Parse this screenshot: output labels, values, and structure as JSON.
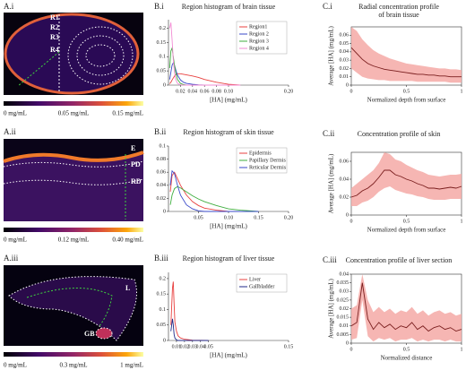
{
  "images": [
    {
      "label": "A.i",
      "annotations": [
        "R1",
        "R2",
        "R3",
        "R4"
      ],
      "colorbar_labels": [
        "0 mg/mL",
        "0.05 mg/mL",
        "0.15 mg/mL"
      ]
    },
    {
      "label": "A.ii",
      "annotations": [
        "E",
        "PD",
        "RD"
      ],
      "colorbar_labels": [
        "0 mg/mL",
        "0.12 mg/mL",
        "0.40 mg/mL"
      ]
    },
    {
      "label": "A.iii",
      "annotations": [
        "L",
        "GB"
      ],
      "colorbar_labels": [
        "0 mg/mL",
        "0.3 mg/mL",
        "1 mg/mL"
      ]
    }
  ],
  "chart_data": [
    {
      "label": "B.i",
      "type": "line",
      "title": [
        "Region histogram of brain tissue"
      ],
      "xlabel": "[HA] (mg/mL)",
      "x": [
        0.002,
        0.004,
        0.006,
        0.008,
        0.01,
        0.012,
        0.015,
        0.02,
        0.025,
        0.03,
        0.04,
        0.05,
        0.06,
        0.08,
        0.1,
        0.12
      ],
      "series": [
        {
          "name": "Region1",
          "color": "#e8403f",
          "values": [
            0.005,
            0.01,
            0.018,
            0.025,
            0.032,
            0.037,
            0.04,
            0.04,
            0.038,
            0.036,
            0.032,
            0.027,
            0.02,
            0.01,
            0.003,
            0
          ]
        },
        {
          "name": "Region 2",
          "color": "#3a49c9",
          "values": [
            0.02,
            0.045,
            0.07,
            0.078,
            0.07,
            0.055,
            0.035,
            0.018,
            0.01,
            0.006,
            0.003,
            0.001,
            0,
            0,
            0,
            0
          ]
        },
        {
          "name": "Region 3",
          "color": "#3fae3f",
          "values": [
            0.06,
            0.12,
            0.13,
            0.1,
            0.07,
            0.045,
            0.02,
            0.006,
            0.002,
            0,
            0,
            0,
            0,
            0,
            0,
            0
          ]
        },
        {
          "name": "Region 4",
          "color": "#f28bd3",
          "values": [
            0.2,
            0.22,
            0.16,
            0.09,
            0.045,
            0.02,
            0.006,
            0.001,
            0,
            0,
            0,
            0,
            0,
            0,
            0,
            0
          ]
        }
      ],
      "xlim": [
        0,
        0.2
      ],
      "ylim": [
        0,
        0.23
      ],
      "xticks": [
        0.02,
        0.04,
        0.06,
        0.08,
        {
          "value": 0.1,
          "label": "0.10"
        },
        {
          "value": 0.2,
          "label": "0.20"
        }
      ],
      "yticks": [
        0,
        0.05,
        0.1,
        0.15,
        0.2
      ],
      "legend": "upper right"
    },
    {
      "label": "B.ii",
      "type": "line",
      "title": [
        "Region histogram of skin tissue"
      ],
      "xlabel": "[HA] (mg/mL)",
      "x": [
        0.003,
        0.006,
        0.01,
        0.015,
        0.02,
        0.03,
        0.04,
        0.05,
        0.06,
        0.08,
        0.1,
        0.12,
        0.15
      ],
      "series": [
        {
          "name": "Epidermis",
          "color": "#e8403f",
          "values": [
            0.03,
            0.055,
            0.06,
            0.05,
            0.04,
            0.025,
            0.015,
            0.009,
            0.005,
            0.002,
            0,
            0,
            0
          ]
        },
        {
          "name": "Papillary Dermis",
          "color": "#3fae3f",
          "values": [
            0.01,
            0.025,
            0.035,
            0.038,
            0.036,
            0.03,
            0.024,
            0.019,
            0.015,
            0.009,
            0.004,
            0.002,
            0
          ]
        },
        {
          "name": "Reticular Dermis",
          "color": "#3a49c9",
          "values": [
            0.04,
            0.062,
            0.058,
            0.04,
            0.025,
            0.01,
            0.004,
            0.001,
            0,
            0,
            0,
            0,
            0
          ]
        }
      ],
      "xlim": [
        0,
        0.2
      ],
      "ylim": [
        0,
        0.1
      ],
      "xticks": [
        0.05,
        {
          "value": 0.1,
          "label": "0.10"
        },
        0.15,
        {
          "value": 0.2,
          "label": "0.20"
        }
      ],
      "yticks": [
        0,
        0.02,
        0.04,
        0.06,
        0.08,
        0.1
      ],
      "legend": "upper right"
    },
    {
      "label": "B.iii",
      "type": "line",
      "title": [
        "Region histogram of liver tissue"
      ],
      "xlabel": "[HA] (mg/mL)",
      "x": [
        0.003,
        0.005,
        0.006,
        0.007,
        0.008,
        0.01,
        0.012,
        0.015,
        0.02,
        0.03,
        0.05
      ],
      "series": [
        {
          "name": "Liver",
          "color": "#e8403f",
          "values": [
            0.05,
            0.17,
            0.19,
            0.12,
            0.06,
            0.03,
            0.015,
            0.008,
            0.004,
            0.001,
            0
          ]
        },
        {
          "name": "Gallbladder",
          "color": "#1f2a8a",
          "values": [
            0.03,
            0.07,
            0.05,
            0.02,
            0.008,
            0.002,
            0,
            0,
            0,
            0,
            0
          ]
        }
      ],
      "xlim": [
        0,
        0.15
      ],
      "ylim": [
        0,
        0.22
      ],
      "xticks": [
        0.01,
        0.02,
        0.03,
        0.04,
        0.05,
        0.15
      ],
      "yticks": [
        0,
        0.05,
        0.1,
        0.15,
        0.2
      ],
      "legend": "upper right"
    },
    {
      "label": "C.i",
      "type": "band",
      "title": [
        "Radial concentration profile",
        "of brain tissue"
      ],
      "xlabel": "Normalized depth from surface",
      "ylabel": "Average [HA]  (mg/mL)",
      "x": [
        0,
        0.05,
        0.1,
        0.15,
        0.2,
        0.25,
        0.3,
        0.35,
        0.4,
        0.45,
        0.5,
        0.55,
        0.6,
        0.65,
        0.7,
        0.75,
        0.8,
        0.85,
        0.9,
        0.95,
        1
      ],
      "series": [
        {
          "color": "#7a1e1e",
          "band_color": "#f5a9a6",
          "values": [
            0.045,
            0.038,
            0.031,
            0.026,
            0.023,
            0.021,
            0.019,
            0.018,
            0.017,
            0.016,
            0.015,
            0.014,
            0.013,
            0.013,
            0.012,
            0.012,
            0.011,
            0.011,
            0.01,
            0.01,
            0.01
          ],
          "upper": [
            0.07,
            0.065,
            0.055,
            0.048,
            0.042,
            0.038,
            0.035,
            0.032,
            0.03,
            0.028,
            0.026,
            0.025,
            0.024,
            0.023,
            0.022,
            0.021,
            0.02,
            0.02,
            0.019,
            0.019,
            0.018
          ],
          "lower": [
            0.02,
            0.015,
            0.01,
            0.008,
            0.007,
            0.006,
            0.006,
            0.005,
            0.005,
            0.005,
            0.005,
            0.005,
            0.004,
            0.004,
            0.004,
            0.004,
            0.004,
            0.004,
            0.003,
            0.003,
            0.003
          ]
        }
      ],
      "xlim": [
        0,
        1
      ],
      "ylim": [
        0,
        0.07
      ],
      "xticks": [
        0,
        0.5,
        1
      ],
      "yticks": [
        0,
        0.01,
        0.02,
        0.03,
        0.04,
        0.05,
        0.06
      ]
    },
    {
      "label": "C.ii",
      "type": "band",
      "title": [
        "Concentration profile of skin"
      ],
      "xlabel": "Normalized depth from surface",
      "ylabel": "Average [HA]  (mg/mL)",
      "x": [
        0,
        0.05,
        0.1,
        0.15,
        0.2,
        0.25,
        0.3,
        0.35,
        0.4,
        0.45,
        0.5,
        0.55,
        0.6,
        0.65,
        0.7,
        0.75,
        0.8,
        0.85,
        0.9,
        0.95,
        1
      ],
      "series": [
        {
          "color": "#7a1e1e",
          "band_color": "#f5a9a6",
          "values": [
            0.02,
            0.022,
            0.027,
            0.03,
            0.035,
            0.042,
            0.05,
            0.05,
            0.045,
            0.043,
            0.04,
            0.038,
            0.035,
            0.033,
            0.03,
            0.03,
            0.029,
            0.03,
            0.031,
            0.03,
            0.032
          ],
          "upper": [
            0.03,
            0.035,
            0.04,
            0.045,
            0.05,
            0.058,
            0.07,
            0.068,
            0.062,
            0.06,
            0.056,
            0.053,
            0.05,
            0.048,
            0.045,
            0.044,
            0.043,
            0.044,
            0.045,
            0.045,
            0.046
          ],
          "lower": [
            0.01,
            0.01,
            0.014,
            0.016,
            0.02,
            0.026,
            0.03,
            0.032,
            0.028,
            0.026,
            0.024,
            0.023,
            0.021,
            0.02,
            0.018,
            0.017,
            0.017,
            0.017,
            0.018,
            0.018,
            0.018
          ]
        }
      ],
      "xlim": [
        0,
        1
      ],
      "ylim": [
        0,
        0.07
      ],
      "xticks": [
        0,
        0.5,
        1
      ],
      "yticks": [
        0,
        0.02,
        0.04,
        0.06
      ]
    },
    {
      "label": "C.iii",
      "type": "band",
      "title": [
        "Concentration profile of liver section"
      ],
      "xlabel": "Normalized distance",
      "ylabel": "Average [HA]  (mg/mL)",
      "x": [
        0,
        0.05,
        0.1,
        0.15,
        0.2,
        0.25,
        0.3,
        0.35,
        0.4,
        0.45,
        0.5,
        0.55,
        0.6,
        0.65,
        0.7,
        0.75,
        0.8,
        0.85,
        0.9,
        0.95,
        1
      ],
      "series": [
        {
          "color": "#7a1e1e",
          "band_color": "#f5a9a6",
          "values": [
            0.01,
            0.012,
            0.035,
            0.014,
            0.008,
            0.012,
            0.009,
            0.011,
            0.008,
            0.01,
            0.009,
            0.012,
            0.008,
            0.01,
            0.007,
            0.009,
            0.01,
            0.008,
            0.009,
            0.007,
            0.008
          ],
          "upper": [
            0.02,
            0.022,
            0.04,
            0.025,
            0.018,
            0.021,
            0.018,
            0.02,
            0.017,
            0.019,
            0.018,
            0.021,
            0.017,
            0.019,
            0.016,
            0.018,
            0.019,
            0.017,
            0.018,
            0.016,
            0.017
          ],
          "lower": [
            0.002,
            0.003,
            0.025,
            0.004,
            0.001,
            0.003,
            0.002,
            0.003,
            0.001,
            0.002,
            0.002,
            0.003,
            0.001,
            0.002,
            0.001,
            0.002,
            0.002,
            0.001,
            0.002,
            0.001,
            0.001
          ]
        }
      ],
      "xlim": [
        0,
        1
      ],
      "ylim": [
        0,
        0.04
      ],
      "xticks": [
        0,
        0.5,
        1
      ],
      "yticks": [
        0,
        0.005,
        0.01,
        0.015,
        0.02,
        0.025,
        0.03,
        0.035,
        0.04
      ]
    }
  ]
}
